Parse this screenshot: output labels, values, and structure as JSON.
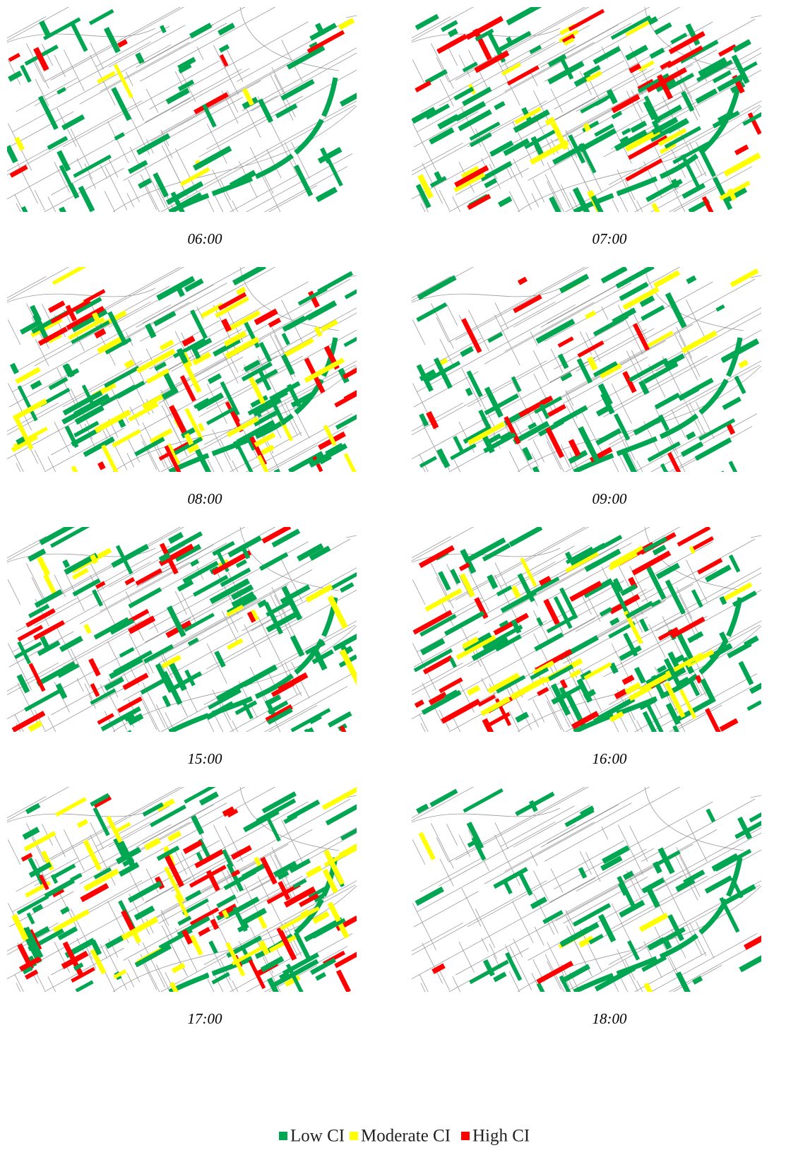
{
  "panels": [
    {
      "label": "06:00"
    },
    {
      "label": "07:00"
    },
    {
      "label": "08:00"
    },
    {
      "label": "09:00"
    },
    {
      "label": "15:00"
    },
    {
      "label": "16:00"
    },
    {
      "label": "17:00"
    },
    {
      "label": "18:00"
    }
  ],
  "legend": [
    {
      "label": "Low CI",
      "color": "#00a651"
    },
    {
      "label": "Moderate CI",
      "color": "#ffff00"
    },
    {
      "label": "High CI",
      "color": "#ff0000"
    }
  ]
}
